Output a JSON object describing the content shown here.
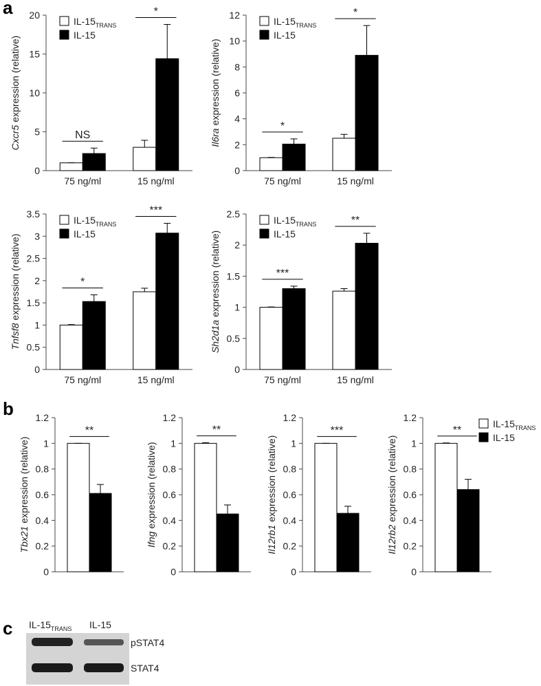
{
  "panel_labels": [
    "a",
    "b",
    "c"
  ],
  "chart_data": [
    {
      "type": "bar",
      "ylabel_italic": "Cxcr5",
      "ylabel": "expression (relative)",
      "categories": [
        "75 ng/ml",
        "15 ng/ml"
      ],
      "series": [
        {
          "name": "IL-15",
          "name_subscript": "TRANS",
          "color": "#ffffff",
          "values": [
            1.0,
            3.0
          ],
          "errors": [
            0.02,
            0.9
          ]
        },
        {
          "name": "IL-15",
          "color": "#000000",
          "values": [
            2.2,
            14.4
          ],
          "errors": [
            0.7,
            4.4
          ]
        }
      ],
      "significance": [
        "NS",
        "*"
      ],
      "ylim": [
        0,
        20
      ],
      "yticks": [
        0,
        5,
        10,
        15,
        20
      ],
      "legend": "upper left"
    },
    {
      "type": "bar",
      "ylabel_italic": "Il6ra",
      "ylabel": "expression (relative)",
      "categories": [
        "75 ng/ml",
        "15 ng/ml"
      ],
      "series": [
        {
          "name": "IL-15",
          "name_subscript": "TRANS",
          "color": "#ffffff",
          "values": [
            1.0,
            2.5
          ],
          "errors": [
            0.02,
            0.3
          ]
        },
        {
          "name": "IL-15",
          "color": "#000000",
          "values": [
            2.05,
            8.9
          ],
          "errors": [
            0.4,
            2.3
          ]
        }
      ],
      "significance": [
        "*",
        "*"
      ],
      "ylim": [
        0,
        12
      ],
      "yticks": [
        0,
        2,
        4,
        6,
        8,
        10,
        12
      ],
      "legend": "upper left"
    },
    {
      "type": "bar",
      "ylabel_italic": "Tnfsf8",
      "ylabel": "expression (relative)",
      "categories": [
        "75 ng/ml",
        "15 ng/ml"
      ],
      "series": [
        {
          "name": "IL-15",
          "name_subscript": "TRANS",
          "color": "#ffffff",
          "values": [
            1.0,
            1.75
          ],
          "errors": [
            0.01,
            0.08
          ]
        },
        {
          "name": "IL-15",
          "color": "#000000",
          "values": [
            1.53,
            3.07
          ],
          "errors": [
            0.15,
            0.22
          ]
        }
      ],
      "significance": [
        "*",
        "***"
      ],
      "ylim": [
        0,
        3.5
      ],
      "yticks": [
        0,
        0.5,
        1,
        1.5,
        2,
        2.5,
        3,
        3.5
      ],
      "legend": "upper left"
    },
    {
      "type": "bar",
      "ylabel_italic": "Sh2d1a",
      "ylabel": "expression (relative)",
      "categories": [
        "75 ng/ml",
        "15 ng/ml"
      ],
      "series": [
        {
          "name": "IL-15",
          "name_subscript": "TRANS",
          "color": "#ffffff",
          "values": [
            1.0,
            1.26
          ],
          "errors": [
            0.005,
            0.04
          ]
        },
        {
          "name": "IL-15",
          "color": "#000000",
          "values": [
            1.3,
            2.03
          ],
          "errors": [
            0.04,
            0.16
          ]
        }
      ],
      "significance": [
        "***",
        "**"
      ],
      "ylim": [
        0,
        2.5
      ],
      "yticks": [
        0,
        0.5,
        1,
        1.5,
        2,
        2.5
      ],
      "legend": "upper left"
    },
    {
      "type": "bar",
      "ylabel_italic": "Tbx21",
      "ylabel": "expression (relative)",
      "categories": [
        null
      ],
      "series": [
        {
          "color": "#ffffff",
          "values": [
            1.0
          ],
          "errors": [
            0.0
          ]
        },
        {
          "color": "#000000",
          "values": [
            0.61
          ],
          "errors": [
            0.07
          ]
        }
      ],
      "significance": [
        "**"
      ],
      "ylim": [
        0,
        1.2
      ],
      "yticks": [
        0,
        0.2,
        0.4,
        0.6,
        0.8,
        1,
        1.2
      ]
    },
    {
      "type": "bar",
      "ylabel_italic": "Ifng",
      "ylabel": "expression (relative)",
      "categories": [
        null
      ],
      "series": [
        {
          "color": "#ffffff",
          "values": [
            1.0
          ],
          "errors": [
            0.005
          ]
        },
        {
          "color": "#000000",
          "values": [
            0.45
          ],
          "errors": [
            0.07
          ]
        }
      ],
      "significance": [
        "**"
      ],
      "ylim": [
        0,
        1.2
      ],
      "yticks": [
        0,
        0.2,
        0.4,
        0.6,
        0.8,
        1,
        1.2
      ]
    },
    {
      "type": "bar",
      "ylabel_italic": "Il12rb1",
      "ylabel": "expression (relative)",
      "categories": [
        null
      ],
      "series": [
        {
          "color": "#ffffff",
          "values": [
            1.0
          ],
          "errors": [
            0.0
          ]
        },
        {
          "color": "#000000",
          "values": [
            0.455
          ],
          "errors": [
            0.055
          ]
        }
      ],
      "significance": [
        "***"
      ],
      "ylim": [
        0,
        1.2
      ],
      "yticks": [
        0,
        0.2,
        0.4,
        0.6,
        0.8,
        1,
        1.2
      ]
    },
    {
      "type": "bar",
      "ylabel_italic": "Il12rb2",
      "ylabel": "expression (relative)",
      "categories": [
        null
      ],
      "series": [
        {
          "name": "IL-15",
          "name_subscript": "TRANS",
          "color": "#ffffff",
          "values": [
            1.0
          ],
          "errors": [
            0.003
          ]
        },
        {
          "name": "IL-15",
          "color": "#000000",
          "values": [
            0.64
          ],
          "errors": [
            0.08
          ]
        }
      ],
      "significance": [
        "**"
      ],
      "ylim": [
        0,
        1.2
      ],
      "yticks": [
        0,
        0.2,
        0.4,
        0.6,
        0.8,
        1,
        1.2
      ],
      "legend": "upper right"
    }
  ],
  "blot": {
    "lanes": [
      {
        "name": "IL-15",
        "name_subscript": "TRANS"
      },
      {
        "name": "IL-15"
      }
    ],
    "rows": [
      "pSTAT4",
      "STAT4"
    ]
  }
}
